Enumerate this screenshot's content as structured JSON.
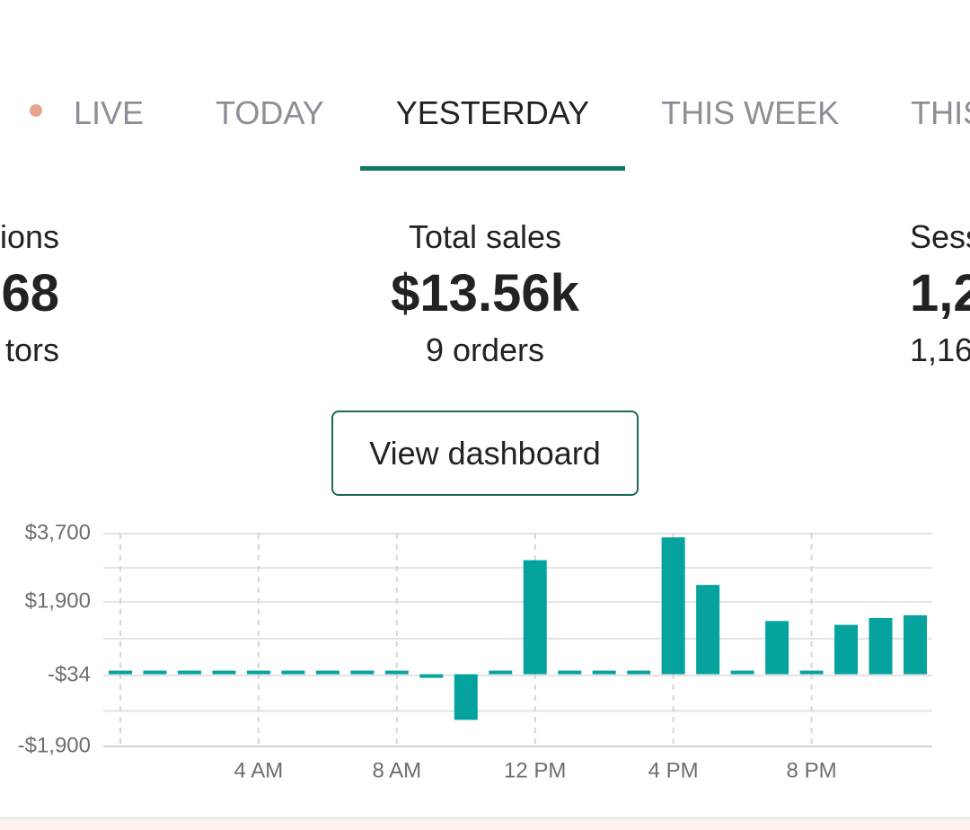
{
  "tabs": [
    {
      "label": "LIVE"
    },
    {
      "label": "TODAY"
    },
    {
      "label": "YESTERDAY",
      "selected": true
    },
    {
      "label": "THIS WEEK"
    },
    {
      "label": "THIS"
    }
  ],
  "stats": [
    {
      "title": "ions",
      "value": "68",
      "subtitle": "tors"
    },
    {
      "title": "Total sales",
      "value": "$13.56k",
      "subtitle": "9 orders"
    },
    {
      "title": "Sess",
      "value": "1,2",
      "subtitle": "1,16"
    }
  ],
  "button": "View dashboard",
  "chart_data": {
    "type": "bar",
    "categories": [
      null,
      null,
      null,
      null,
      "4 AM",
      null,
      null,
      null,
      "8 AM",
      null,
      null,
      null,
      "12 PM",
      null,
      null,
      null,
      "4 PM",
      null,
      null,
      null,
      "8 PM",
      null,
      null,
      null
    ],
    "values": [
      0,
      0,
      0,
      0,
      0,
      0,
      0,
      0,
      0,
      -80,
      -1200,
      0,
      3000,
      0,
      0,
      0,
      3600,
      2350,
      0,
      1400,
      0,
      1300,
      1480,
      1550
    ],
    "color": "#06a39e",
    "ylim": [
      -1900,
      3700
    ],
    "yticks": [
      {
        "value": 3700,
        "label": "$3,700"
      },
      {
        "value": 1900,
        "label": "$1,900"
      },
      {
        "value": -34,
        "label": "-$34"
      },
      {
        "value": -1900,
        "label": "-$1,900"
      }
    ],
    "grid": true
  }
}
